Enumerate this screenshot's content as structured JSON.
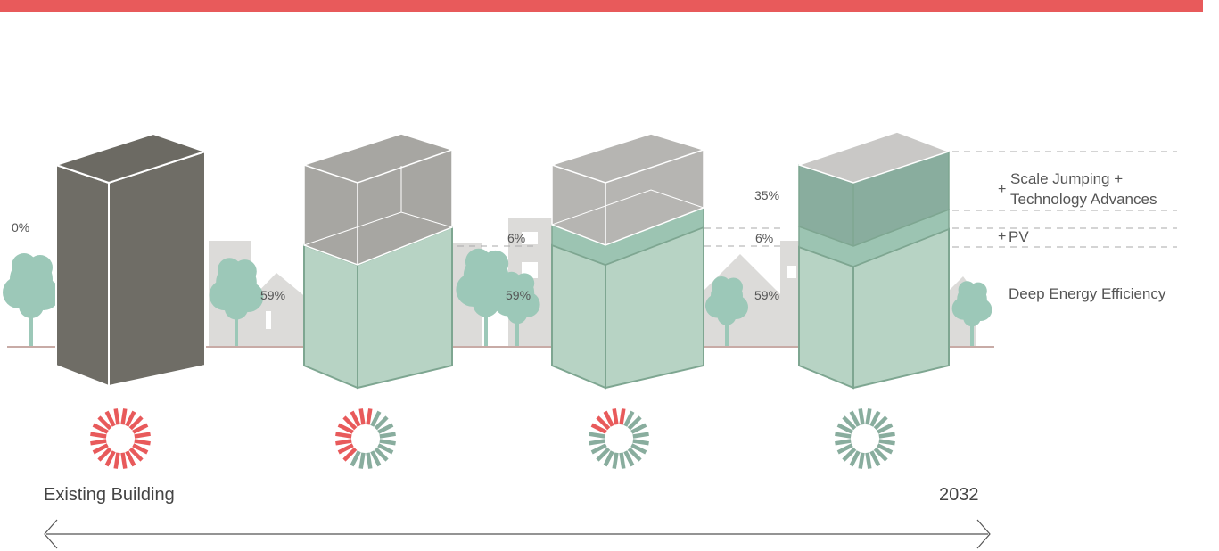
{
  "colors": {
    "accent_red": "#e85a5b",
    "dark_building": "#6f6d66",
    "efficiency_green": "#b7d3c4",
    "efficiency_green_stroke": "#7ea691",
    "pv_green": "#9cc4b2",
    "advances_green": "#89ad9e",
    "ghost_gray": "#a7a6a2",
    "tree_green": "#9cc8b8",
    "house_gray": "#dcdbd9",
    "ground_line": "#b58f88"
  },
  "icons": {
    "burst": "sunburst-icon",
    "tree": "tree-icon",
    "house": "house-silhouette"
  },
  "buildings": [
    {
      "name": "existing",
      "label_pct": "0%",
      "burst_red_fraction": 1.0
    },
    {
      "name": "efficiency",
      "label_pct": "59%",
      "burst_red_fraction": 0.45
    },
    {
      "name": "pv",
      "label_pct_top": "6%",
      "label_pct": "59%",
      "burst_red_fraction": 0.25
    },
    {
      "name": "advances",
      "label_pct_top2": "35%",
      "label_pct_top": "6%",
      "label_pct": "59%",
      "burst_red_fraction": 0.0
    }
  ],
  "legend": {
    "advances_plus": "+",
    "advances_line1": "Scale Jumping +",
    "advances_line2": "Technology Advances",
    "pv_plus": "+",
    "pv_label": "PV",
    "efficiency_label": "Deep Energy Efficiency"
  },
  "timeline": {
    "start": "Existing Building",
    "end": "2032"
  }
}
